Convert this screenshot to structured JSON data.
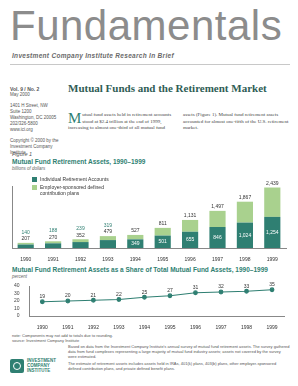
{
  "header": {
    "title": "Fundamentals",
    "subtitle": "Investment Company Institute Research In Brief"
  },
  "sidebar": {
    "issue": "Vol. 9 / No. 2",
    "date": "May 2000",
    "address": [
      "1401 H Street, NW",
      "Suite 1200",
      "Washington, DC 20005",
      "202/326-5800",
      "www.ici.org"
    ],
    "copyright": "Copyright © 2000 by the Investment Company Institute"
  },
  "article": {
    "title": "Mutual Funds and the Retirement Market",
    "body": [
      "Mutual fund assets held in retirement accounts stood at $2.4 trillion at the end of 1999, increasing to almost one-third of all mutual fund assets (Figure 1). Mutual fund retirement assets accounted for almost one-fifth of the U.S. retirement market."
    ]
  },
  "figure": {
    "label": "Figure 1"
  },
  "chart_data": [
    {
      "type": "bar",
      "title": "Mutual Fund Retirement Assets, 1990–1999",
      "subtitle": "billions of dollars",
      "categories": [
        "1990",
        "1991",
        "1992",
        "1993",
        "1994",
        "1995",
        "1996",
        "1997",
        "1998",
        "1999"
      ],
      "series": [
        {
          "name": "Individual Retirement Accounts",
          "color": "#2f7f72",
          "values": [
            140,
            188,
            239,
            319,
            349,
            501,
            655,
            846,
            1024,
            1254
          ],
          "value_labels": [
            "140",
            "188",
            "239",
            "319",
            "349",
            "501",
            "655",
            "846",
            "1,024",
            "1,254"
          ]
        },
        {
          "name": "Employer-sponsored defined contribution plans",
          "color": "#a9d18e",
          "values": [
            67,
            82,
            113,
            160,
            178,
            310,
            476,
            651,
            843,
            1185
          ]
        }
      ],
      "totals": [
        207,
        270,
        352,
        479,
        527,
        811,
        1131,
        1497,
        1867,
        2439
      ],
      "total_labels": [
        "207",
        "270",
        "352",
        "479",
        "527",
        "811",
        "1,131",
        "1,497",
        "1,867",
        "2,439"
      ],
      "stacked": true,
      "data_labels": true,
      "legend": "top-left",
      "grid": false,
      "ylim": [
        0,
        2500
      ],
      "tick_labels": "x"
    },
    {
      "type": "line",
      "title": "Mutual Fund Retirement Assets as a Share of Total Mutual Fund Assets, 1990–1999",
      "subtitle": "percent",
      "categories": [
        "1990",
        "1991",
        "1992",
        "1993",
        "1994",
        "1995",
        "1996",
        "1997",
        "1998",
        "1999"
      ],
      "values": [
        19,
        20,
        21,
        22,
        25,
        27,
        31,
        32,
        33,
        35
      ],
      "color": "#2f7f72",
      "marker": "circle",
      "data_labels": true,
      "grid": false,
      "ylim": [
        0,
        40
      ],
      "yticks": [
        0,
        10,
        20,
        30,
        40
      ]
    }
  ],
  "notes": [
    "note: Components may not add to totals due to rounding.",
    "source: Investment Company Institute"
  ],
  "footer": [
    "Based on data from the Investment Company Institute's annual survey of mutual fund retirement assets. The survey gathered data from fund complexes representing a large majority of mutual fund industry assets; assets not covered by the survey were estimated.",
    "The estimate of retirement assets includes assets held in IRAs, 401(k) plans, 403(b) plans, other employer-sponsored defined contribution plans, and private defined benefit plans."
  ],
  "logo": {
    "lines": [
      "INVESTMENT",
      "COMPANY",
      "INSTITUTE"
    ]
  }
}
